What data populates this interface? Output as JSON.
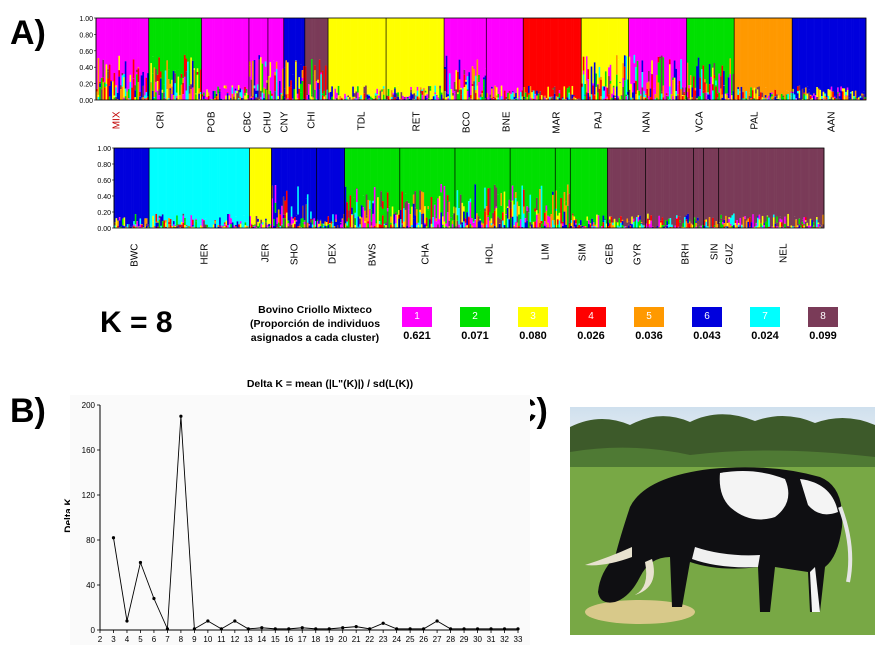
{
  "panels": {
    "a": "A)",
    "b": "B)",
    "c": "C)"
  },
  "structure_row1": {
    "y_ticks": [
      "1.00",
      "0.80",
      "0.60",
      "0.40",
      "0.20",
      "0.00"
    ],
    "populations": [
      "MIX",
      "CRI",
      "POB",
      "CBC",
      "CHU",
      "CNY",
      "CHI",
      "TDL",
      "RET",
      "BCO",
      "BNE",
      "MAR",
      "PAJ",
      "NAN",
      "VCA",
      "PAL",
      "AAN"
    ],
    "highlight": "MIX",
    "highlight_color": "#c00000"
  },
  "structure_row2": {
    "y_ticks": [
      "1.00",
      "0.80",
      "0.60",
      "0.40",
      "0.20",
      "0.00"
    ],
    "populations": [
      "BWC",
      "HER",
      "JER",
      "SHO",
      "DEX",
      "BWS",
      "CHA",
      "HOL",
      "LIM",
      "SIM",
      "GEB",
      "GYR",
      "BRH",
      "SIN",
      "GUZ",
      "NEL"
    ]
  },
  "legend": {
    "k_label": "K = 8",
    "title_lines": [
      "Bovino Criollo Mixteco",
      "(Proporción de individuos",
      "asignados a cada cluster)"
    ],
    "clusters": [
      {
        "id": "1",
        "value": "0.621",
        "color": "#ff00ff"
      },
      {
        "id": "2",
        "value": "0.071",
        "color": "#00e000"
      },
      {
        "id": "3",
        "value": "0.080",
        "color": "#ffff00"
      },
      {
        "id": "4",
        "value": "0.026",
        "color": "#ff0000"
      },
      {
        "id": "5",
        "value": "0.036",
        "color": "#ff9900"
      },
      {
        "id": "6",
        "value": "0.043",
        "color": "#0000dd"
      },
      {
        "id": "7",
        "value": "0.024",
        "color": "#00ffff"
      },
      {
        "id": "8",
        "value": "0.099",
        "color": "#7a3b58"
      }
    ]
  },
  "chart_data": {
    "type": "line",
    "title": "Delta K = mean (|L\"(K)|) / sd(L(K))",
    "xlabel": "",
    "ylabel": "Delta K",
    "x_ticks": [
      "2",
      "3",
      "4",
      "5",
      "6",
      "7",
      "8",
      "9",
      "10",
      "11",
      "12",
      "13",
      "14",
      "15",
      "16",
      "17",
      "18",
      "19",
      "20",
      "21",
      "22",
      "23",
      "24",
      "25",
      "26",
      "27",
      "28",
      "29",
      "30",
      "31",
      "32",
      "33"
    ],
    "y_ticks": [
      "0",
      "40",
      "80",
      "120",
      "160",
      "200"
    ],
    "ylim": [
      0,
      200
    ],
    "xlim": [
      2,
      33
    ],
    "series": [
      {
        "name": "Delta K",
        "x": [
          3,
          4,
          5,
          6,
          7,
          8,
          9,
          10,
          11,
          12,
          13,
          14,
          15,
          16,
          17,
          18,
          19,
          20,
          21,
          22,
          23,
          24,
          25,
          26,
          27,
          28,
          29,
          30,
          31,
          32,
          33
        ],
        "values": [
          82,
          8,
          60,
          28,
          1,
          190,
          1,
          8,
          1,
          8,
          1,
          2,
          1,
          1,
          2,
          1,
          1,
          2,
          3,
          1,
          6,
          1,
          1,
          1,
          8,
          1,
          1,
          1,
          1,
          1,
          1
        ]
      }
    ]
  },
  "photo": {
    "caption": ""
  }
}
